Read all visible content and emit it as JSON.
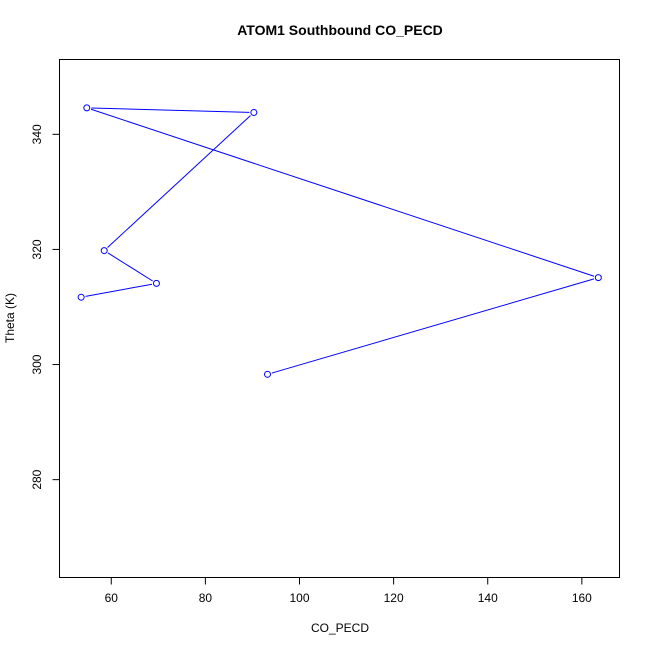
{
  "chart_data": {
    "type": "line",
    "title": "ATOM1 Southbound CO_PECD",
    "xlabel": "CO_PECD",
    "ylabel": "Theta (K)",
    "xlim": [
      49,
      168
    ],
    "ylim": [
      263,
      353
    ],
    "x_ticks": [
      60,
      80,
      100,
      120,
      140,
      160
    ],
    "y_ticks": [
      280,
      300,
      320,
      340
    ],
    "grid": false,
    "legend": "none",
    "series": [
      {
        "color": "#0000ff",
        "marker": "open-circle",
        "points": [
          {
            "x": 93.2,
            "y": 298.3
          },
          {
            "x": 163.5,
            "y": 315.1
          },
          {
            "x": 54.8,
            "y": 344.6
          },
          {
            "x": 90.3,
            "y": 343.8
          },
          {
            "x": 58.5,
            "y": 319.8
          },
          {
            "x": 69.6,
            "y": 314.1
          },
          {
            "x": 53.6,
            "y": 311.7
          }
        ]
      }
    ]
  }
}
